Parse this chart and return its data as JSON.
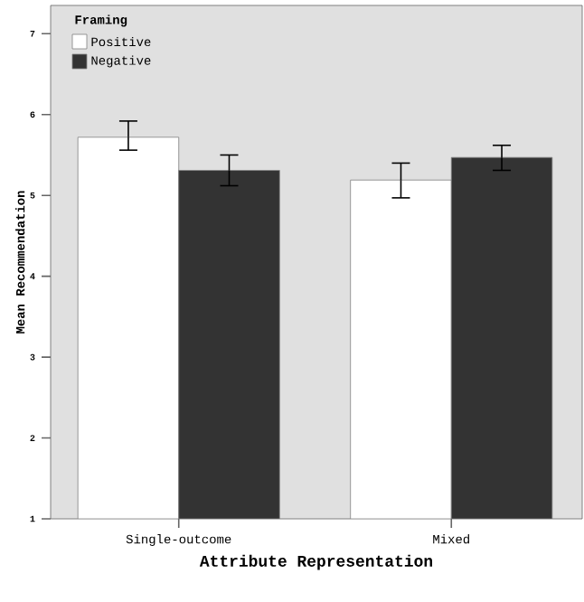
{
  "chart_data": {
    "type": "bar",
    "xlabel": "Attribute Representation",
    "ylabel": "Mean Recommendation",
    "legend_title": "Framing",
    "categories": [
      "Single-outcome",
      "Mixed"
    ],
    "series": [
      {
        "name": "Positive",
        "color": "#ffffff",
        "values": [
          5.72,
          5.19
        ],
        "errors": [
          [
            5.56,
            5.92
          ],
          [
            4.97,
            5.4
          ]
        ]
      },
      {
        "name": "Negative",
        "color": "#333333",
        "values": [
          5.31,
          5.47
        ],
        "errors": [
          [
            5.12,
            5.5
          ],
          [
            5.31,
            5.62
          ]
        ]
      }
    ],
    "ylim": [
      1,
      7.35
    ],
    "yticks": [
      1,
      2,
      3,
      4,
      5,
      6,
      7
    ],
    "legend": "top left"
  }
}
